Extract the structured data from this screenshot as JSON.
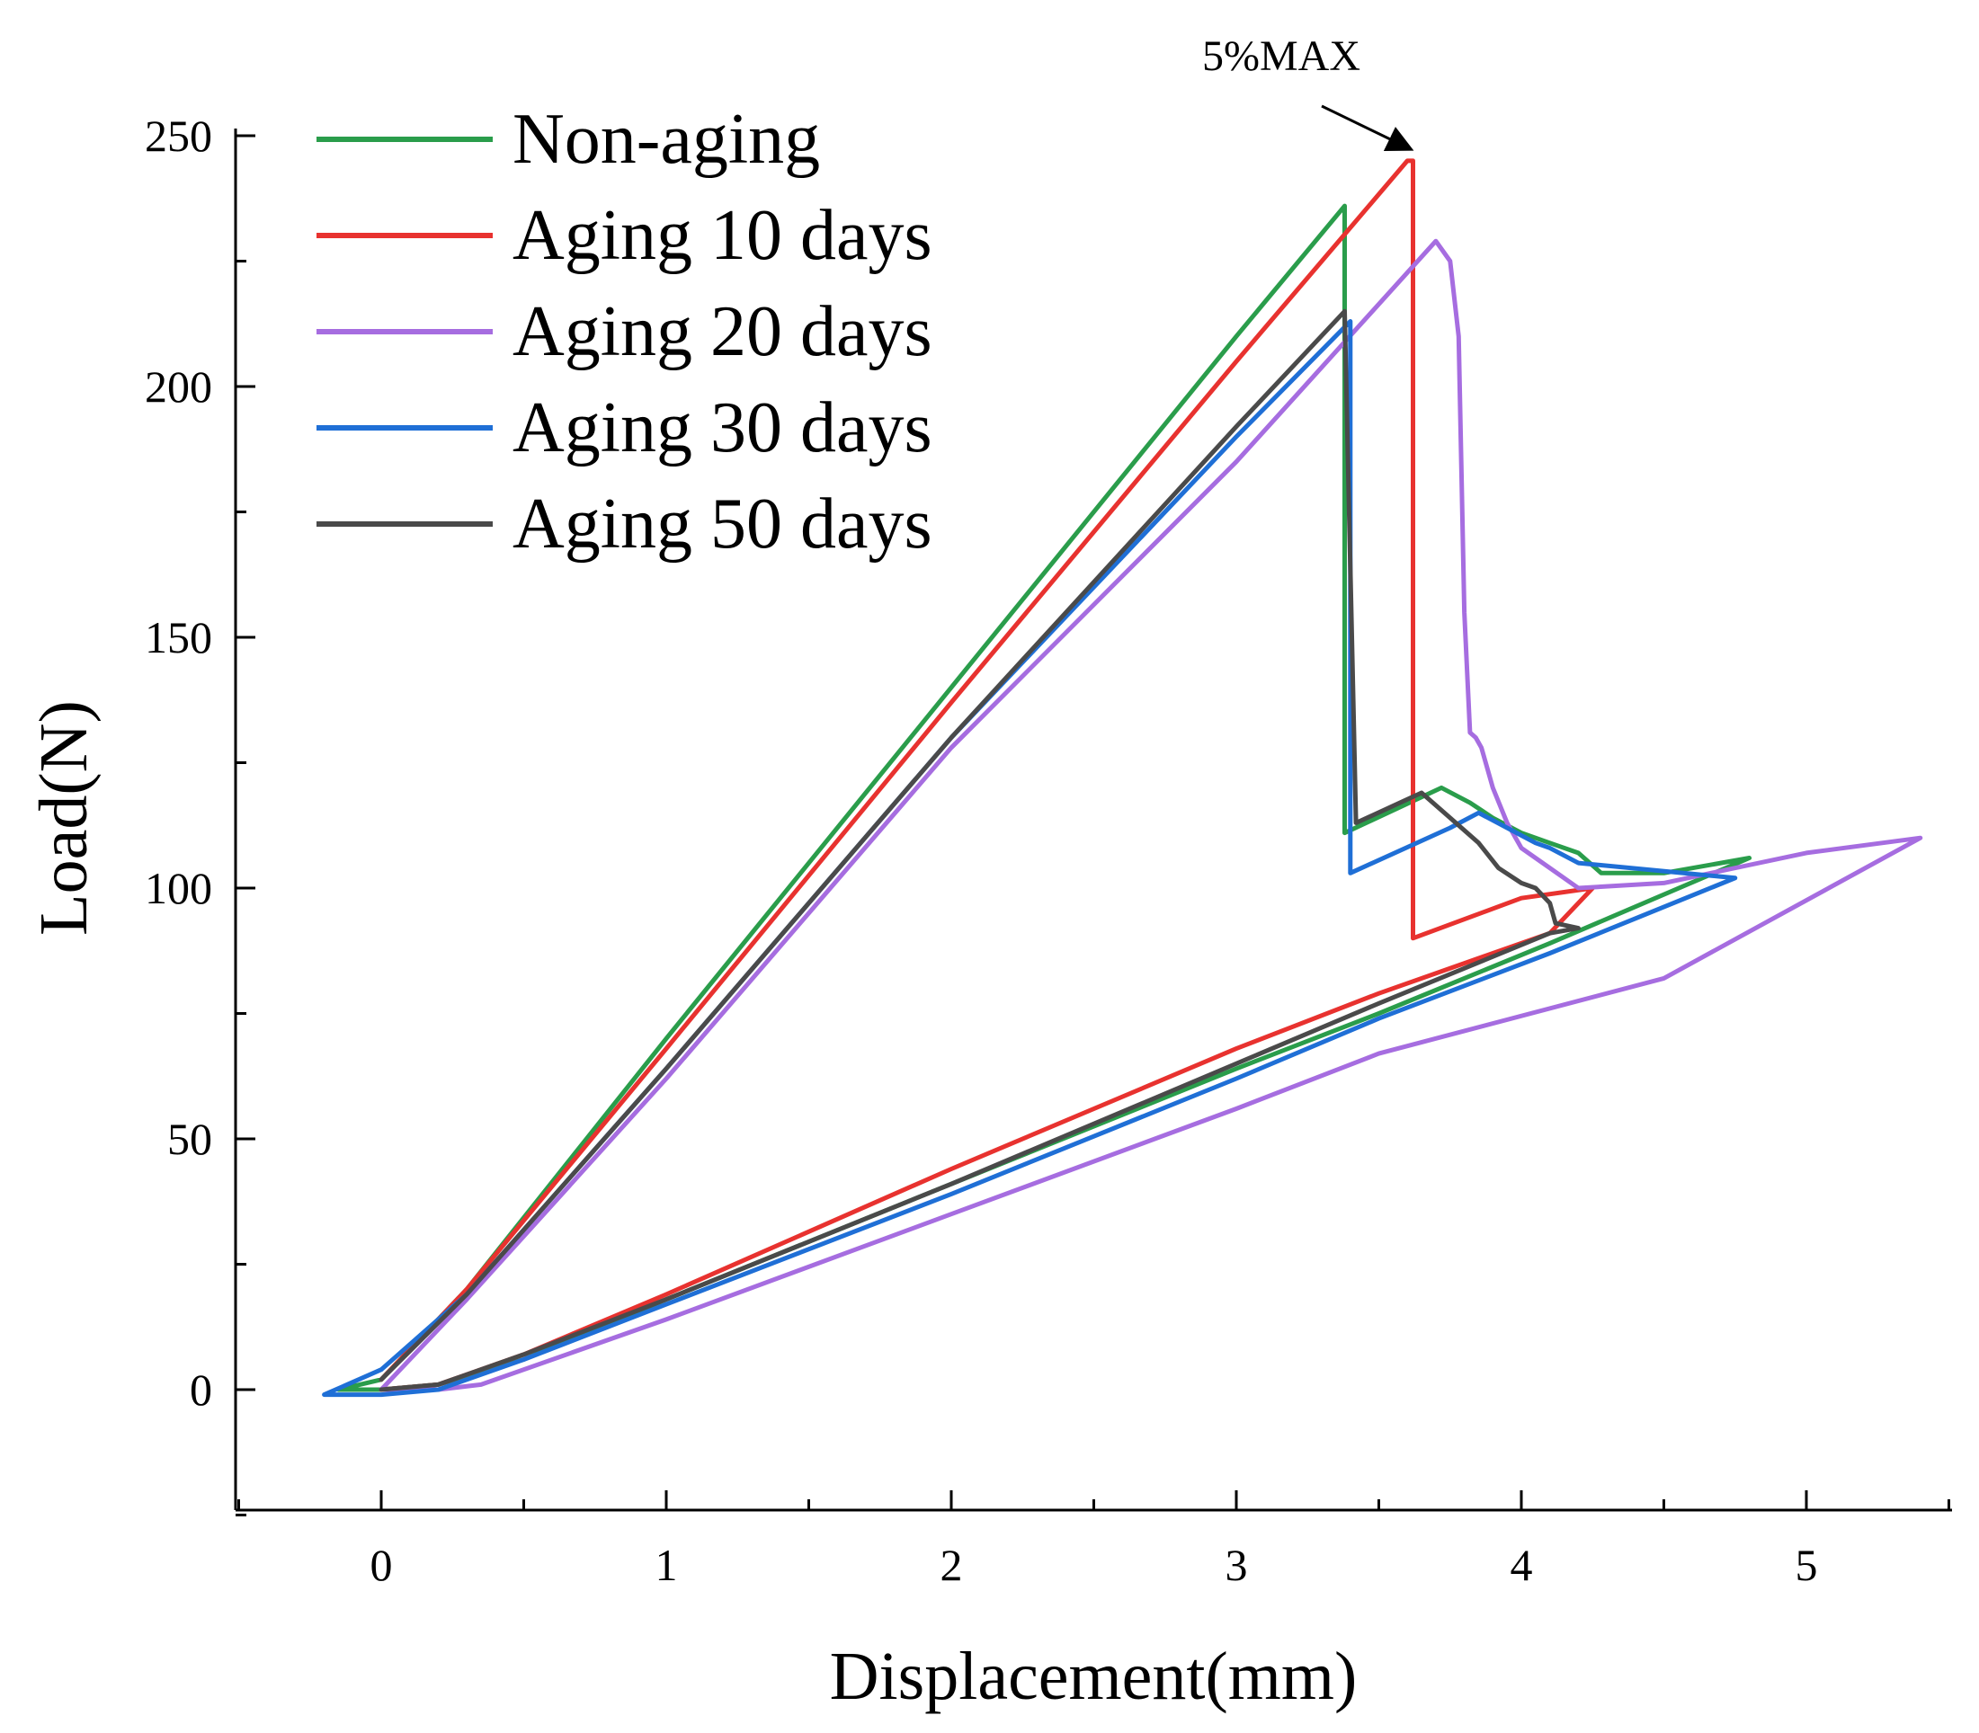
{
  "chart_data": {
    "type": "line",
    "title": "",
    "xlabel": "Displacement(mm)",
    "ylabel": "Load(N)",
    "xlim": [
      -0.5,
      5.5
    ],
    "ylim": [
      -25,
      250
    ],
    "xticks": [
      0,
      1,
      2,
      3,
      4,
      5
    ],
    "yticks": [
      0,
      50,
      100,
      150,
      200,
      250
    ],
    "xtick_labels": [
      "0",
      "1",
      "2",
      "3",
      "4",
      "5"
    ],
    "ytick_labels": [
      "0",
      "50",
      "100",
      "150",
      "200",
      "250"
    ],
    "grid": false,
    "legend_position": "top-left",
    "annotations": [
      {
        "text": "5%MAX",
        "x": 3.62,
        "y": 245
      }
    ],
    "series": [
      {
        "name": "Non-aging",
        "color": "#2a9d4b",
        "x": [
          -0.15,
          0,
          0.3,
          1,
          2,
          3,
          3.38,
          3.38,
          3.72,
          3.82,
          3.9,
          4.0,
          4.1,
          4.2,
          4.28,
          4.5,
          4.8,
          4.1,
          3.5,
          3.0,
          2.0,
          1.0,
          0.5,
          0.2,
          0,
          -0.15
        ],
        "y": [
          0,
          2,
          20,
          70,
          140,
          210,
          236,
          111,
          120,
          117,
          114,
          111,
          109,
          107,
          103,
          103,
          106,
          89,
          75,
          64,
          41,
          18,
          6,
          1,
          0,
          0
        ]
      },
      {
        "name": "Aging 10 days",
        "color": "#e8322f",
        "x": [
          0,
          0.3,
          1,
          2,
          3,
          3.6,
          3.62,
          3.62,
          4.0,
          4.25,
          4.1,
          3.5,
          3.0,
          2.0,
          1.0,
          0.5,
          0.2,
          0
        ],
        "y": [
          2,
          20,
          68,
          137,
          205,
          245,
          245,
          90,
          98,
          100,
          91,
          79,
          68,
          44,
          19,
          7,
          1,
          0
        ]
      },
      {
        "name": "Aging 20 days",
        "color": "#a66de0",
        "x": [
          0,
          0.3,
          1,
          2,
          3,
          3.7,
          3.75,
          3.78,
          3.8,
          3.82,
          3.84,
          3.86,
          3.9,
          3.95,
          4.0,
          4.1,
          4.2,
          4.5,
          5.0,
          5.4,
          4.5,
          3.5,
          3.0,
          2.0,
          1.0,
          0.35,
          0.2,
          0
        ],
        "y": [
          0,
          18,
          62,
          128,
          185,
          229,
          225,
          210,
          155,
          131,
          130,
          128,
          120,
          113,
          108,
          104,
          100,
          101,
          107,
          110,
          82,
          67,
          56,
          35,
          14,
          1,
          0,
          0
        ]
      },
      {
        "name": "Aging 30 days",
        "color": "#1f6fd6",
        "x": [
          -0.2,
          0,
          0.3,
          1,
          2,
          3,
          3.4,
          3.4,
          3.75,
          3.85,
          3.95,
          4.05,
          4.1,
          4.2,
          4.75,
          4.1,
          3.5,
          3.0,
          2.0,
          1.0,
          0.5,
          0.2,
          0,
          -0.2
        ],
        "y": [
          -1,
          4,
          19,
          64,
          130,
          190,
          213,
          103,
          112,
          115,
          112,
          109,
          108,
          105,
          102,
          87,
          74,
          62,
          39,
          17,
          6,
          0,
          -1,
          -1
        ]
      },
      {
        "name": "Aging 50 days",
        "color": "#4a4a4a",
        "x": [
          0,
          0.3,
          1,
          2,
          3,
          3.38,
          3.42,
          3.65,
          3.75,
          3.85,
          3.92,
          4.0,
          4.05,
          4.1,
          4.12,
          4.2,
          4.1,
          3.5,
          3.0,
          2.0,
          1.0,
          0.5,
          0.2,
          0
        ],
        "y": [
          2,
          19,
          64,
          130,
          192,
          215,
          113,
          119,
          114,
          109,
          104,
          101,
          100,
          97,
          93,
          92,
          91,
          77,
          65,
          41,
          18,
          7,
          1,
          0
        ]
      }
    ]
  }
}
